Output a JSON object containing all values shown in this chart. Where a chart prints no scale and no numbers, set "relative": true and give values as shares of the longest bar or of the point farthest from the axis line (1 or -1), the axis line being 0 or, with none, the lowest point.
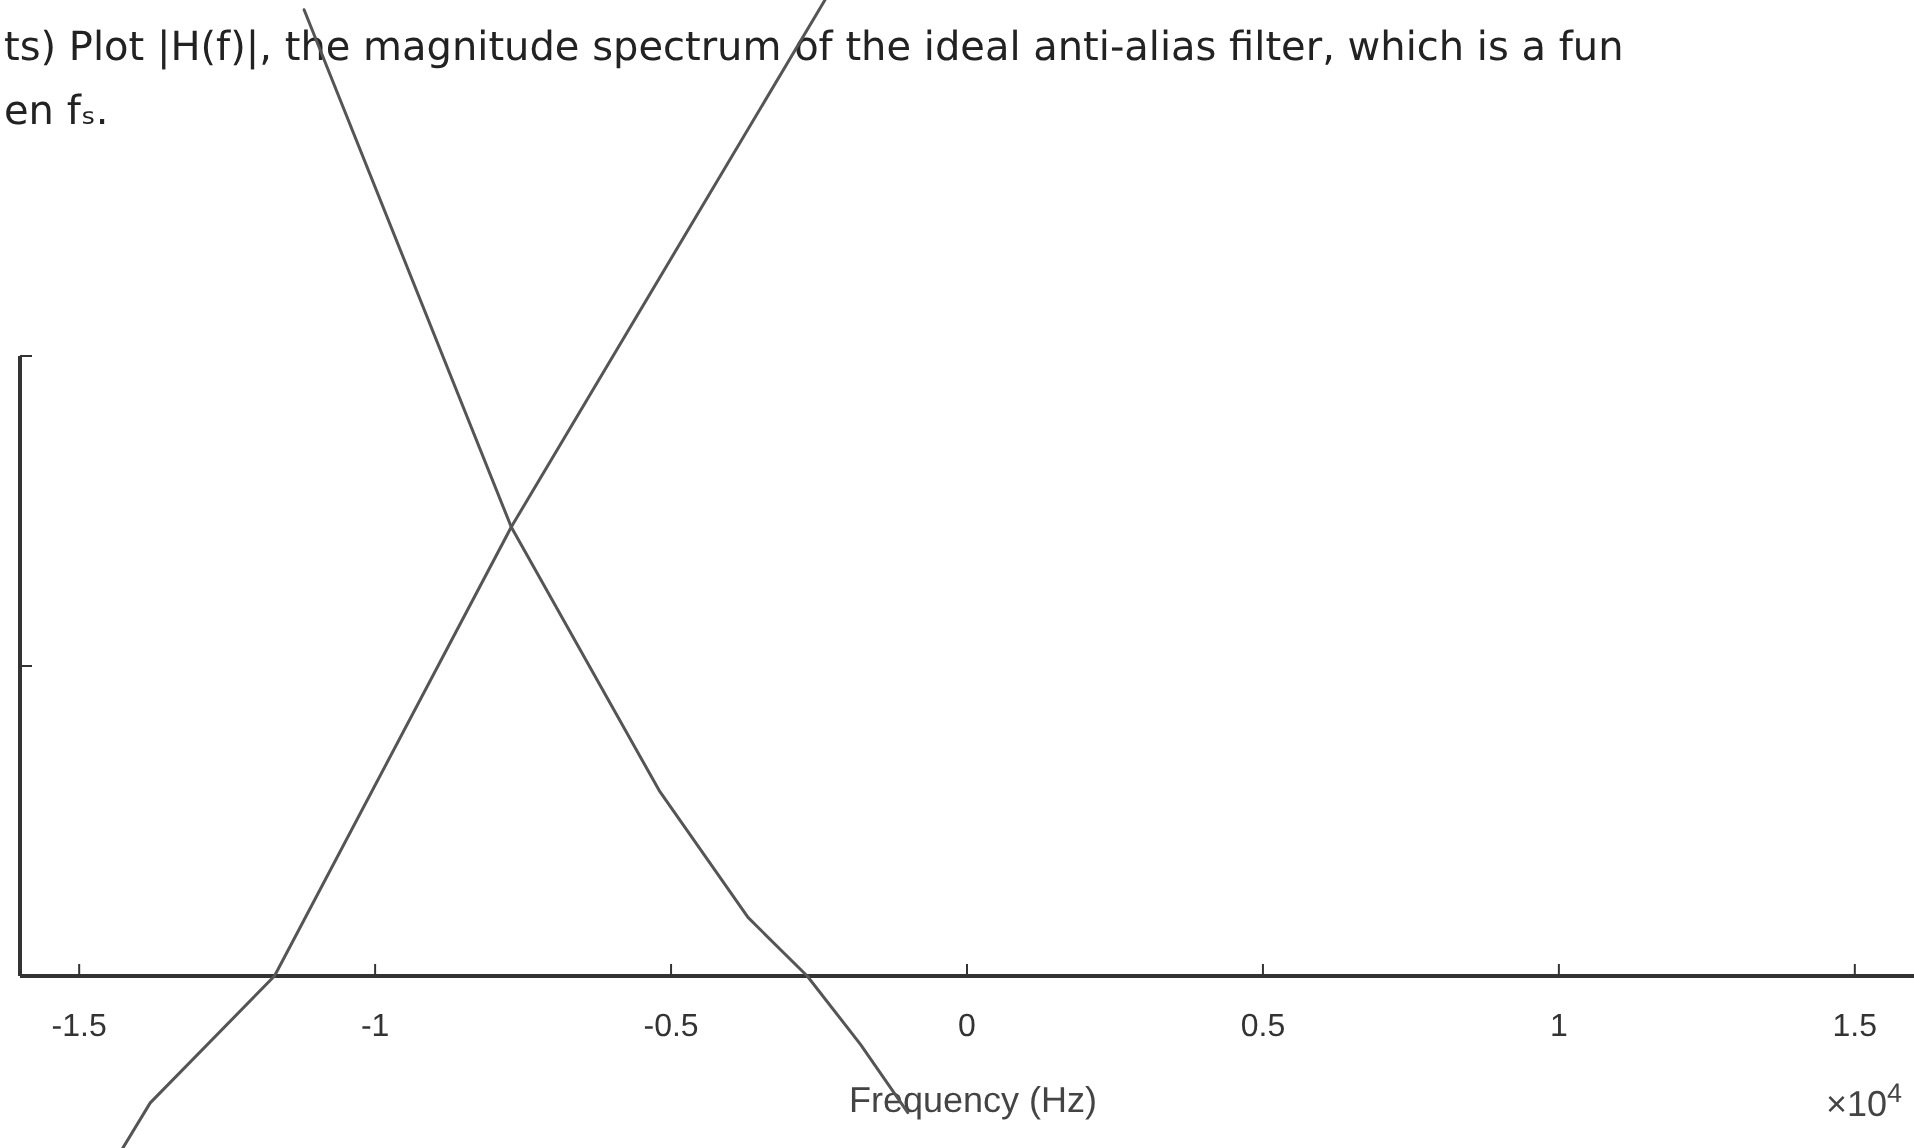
{
  "chart_data": {
    "type": "line",
    "relative": true,
    "xlabel": "Frequency (Hz)",
    "xlim": [
      -1.6,
      1.6
    ],
    "xticks": [
      {
        "value": -1.5,
        "label": "-1.5"
      },
      {
        "value": -1,
        "label": "-1"
      },
      {
        "value": -0.5,
        "label": "-0.5"
      },
      0,
      0.5,
      1,
      1.5
    ],
    "line_style": "solid",
    "marker": "none",
    "annotations": [
      "ts) Plot |H(f)|, the magnitude spectrum of the ideal anti-alias filter, which is a fun",
      "en fₛ.",
      "×10$^{4}$"
    ],
    "series": [
      {
        "color": "#555555",
        "x": [
          -1.12,
          -0.77,
          -0.52,
          -0.37,
          -0.27,
          -0.18,
          -0.1
        ],
        "values": [
          0.99,
          0.46,
          0.19,
          0.06,
          0,
          -0.07,
          -0.14
        ]
      },
      {
        "color": "#555555",
        "x": [
          -0.24,
          -0.77,
          -1.17,
          -1.38,
          -1.43
        ],
        "values": [
          1,
          0.46,
          0,
          -0.13,
          -0.18
        ]
      }
    ]
  }
}
